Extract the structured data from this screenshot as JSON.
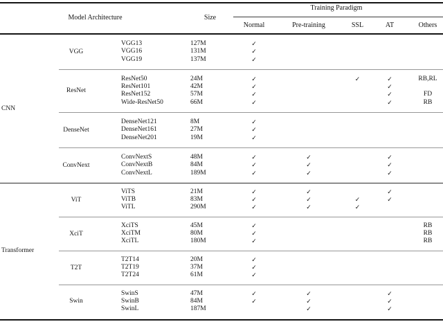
{
  "colors": {
    "text": "#141414",
    "rule_dark": "#141414",
    "rule_section": "#2a2a2a",
    "rule_group": "#979797"
  },
  "checkmark": "✓",
  "header": {
    "model_architecture": "Model Architecture",
    "size": "Size",
    "training_paradigm": "Training Paradigm",
    "paradigms": [
      "Normal",
      "Pre-training",
      "SSL",
      "AT",
      "Others"
    ]
  },
  "sections": [
    {
      "name": "CNN",
      "groups": [
        {
          "family": "VGG",
          "rows": [
            {
              "model": "VGG13",
              "size": "127M",
              "normal": true,
              "pretraining": false,
              "ssl": false,
              "at": false,
              "others": ""
            },
            {
              "model": "VGG16",
              "size": "131M",
              "normal": true,
              "pretraining": false,
              "ssl": false,
              "at": false,
              "others": ""
            },
            {
              "model": "VGG19",
              "size": "137M",
              "normal": true,
              "pretraining": false,
              "ssl": false,
              "at": false,
              "others": ""
            }
          ]
        },
        {
          "family": "ResNet",
          "rows": [
            {
              "model": "ResNet50",
              "size": "24M",
              "normal": true,
              "pretraining": false,
              "ssl": true,
              "at": true,
              "others": "RB,RL"
            },
            {
              "model": "ResNet101",
              "size": "42M",
              "normal": true,
              "pretraining": false,
              "ssl": false,
              "at": true,
              "others": ""
            },
            {
              "model": "ResNet152",
              "size": "57M",
              "normal": true,
              "pretraining": false,
              "ssl": false,
              "at": true,
              "others": "FD"
            },
            {
              "model": "Wide-ResNet50",
              "size": "66M",
              "normal": true,
              "pretraining": false,
              "ssl": false,
              "at": true,
              "others": "RB"
            }
          ]
        },
        {
          "family": "DenseNet",
          "rows": [
            {
              "model": "DenseNet121",
              "size": "8M",
              "normal": true,
              "pretraining": false,
              "ssl": false,
              "at": false,
              "others": ""
            },
            {
              "model": "DenseNet161",
              "size": "27M",
              "normal": true,
              "pretraining": false,
              "ssl": false,
              "at": false,
              "others": ""
            },
            {
              "model": "DenseNet201",
              "size": "19M",
              "normal": true,
              "pretraining": false,
              "ssl": false,
              "at": false,
              "others": ""
            }
          ]
        },
        {
          "family": "ConvNext",
          "rows": [
            {
              "model": "ConvNextS",
              "size": "48M",
              "normal": true,
              "pretraining": true,
              "ssl": false,
              "at": true,
              "others": ""
            },
            {
              "model": "ConvNextB",
              "size": "84M",
              "normal": true,
              "pretraining": true,
              "ssl": false,
              "at": true,
              "others": ""
            },
            {
              "model": "ConvNextL",
              "size": "189M",
              "normal": true,
              "pretraining": true,
              "ssl": false,
              "at": true,
              "others": ""
            }
          ]
        }
      ]
    },
    {
      "name": "Transformer",
      "groups": [
        {
          "family": "ViT",
          "rows": [
            {
              "model": "ViTS",
              "size": "21M",
              "normal": true,
              "pretraining": true,
              "ssl": false,
              "at": true,
              "others": ""
            },
            {
              "model": "ViTB",
              "size": "83M",
              "normal": true,
              "pretraining": true,
              "ssl": true,
              "at": true,
              "others": ""
            },
            {
              "model": "ViTL",
              "size": "290M",
              "normal": true,
              "pretraining": true,
              "ssl": true,
              "at": false,
              "others": ""
            }
          ]
        },
        {
          "family": "XciT",
          "rows": [
            {
              "model": "XciTS",
              "size": "45M",
              "normal": true,
              "pretraining": false,
              "ssl": false,
              "at": false,
              "others": "RB"
            },
            {
              "model": "XciTM",
              "size": "80M",
              "normal": true,
              "pretraining": false,
              "ssl": false,
              "at": false,
              "others": "RB"
            },
            {
              "model": "XciTL",
              "size": "180M",
              "normal": true,
              "pretraining": false,
              "ssl": false,
              "at": false,
              "others": "RB"
            }
          ]
        },
        {
          "family": "T2T",
          "rows": [
            {
              "model": "T2T14",
              "size": "20M",
              "normal": true,
              "pretraining": false,
              "ssl": false,
              "at": false,
              "others": ""
            },
            {
              "model": "T2T19",
              "size": "37M",
              "normal": true,
              "pretraining": false,
              "ssl": false,
              "at": false,
              "others": ""
            },
            {
              "model": "T2T24",
              "size": "61M",
              "normal": true,
              "pretraining": false,
              "ssl": false,
              "at": false,
              "others": ""
            }
          ]
        },
        {
          "family": "Swin",
          "rows": [
            {
              "model": "SwinS",
              "size": "47M",
              "normal": true,
              "pretraining": true,
              "ssl": false,
              "at": true,
              "others": ""
            },
            {
              "model": "SwinB",
              "size": "84M",
              "normal": true,
              "pretraining": true,
              "ssl": false,
              "at": true,
              "others": ""
            },
            {
              "model": "SwinL",
              "size": "187M",
              "normal": false,
              "pretraining": true,
              "ssl": false,
              "at": true,
              "others": ""
            }
          ]
        }
      ]
    }
  ]
}
